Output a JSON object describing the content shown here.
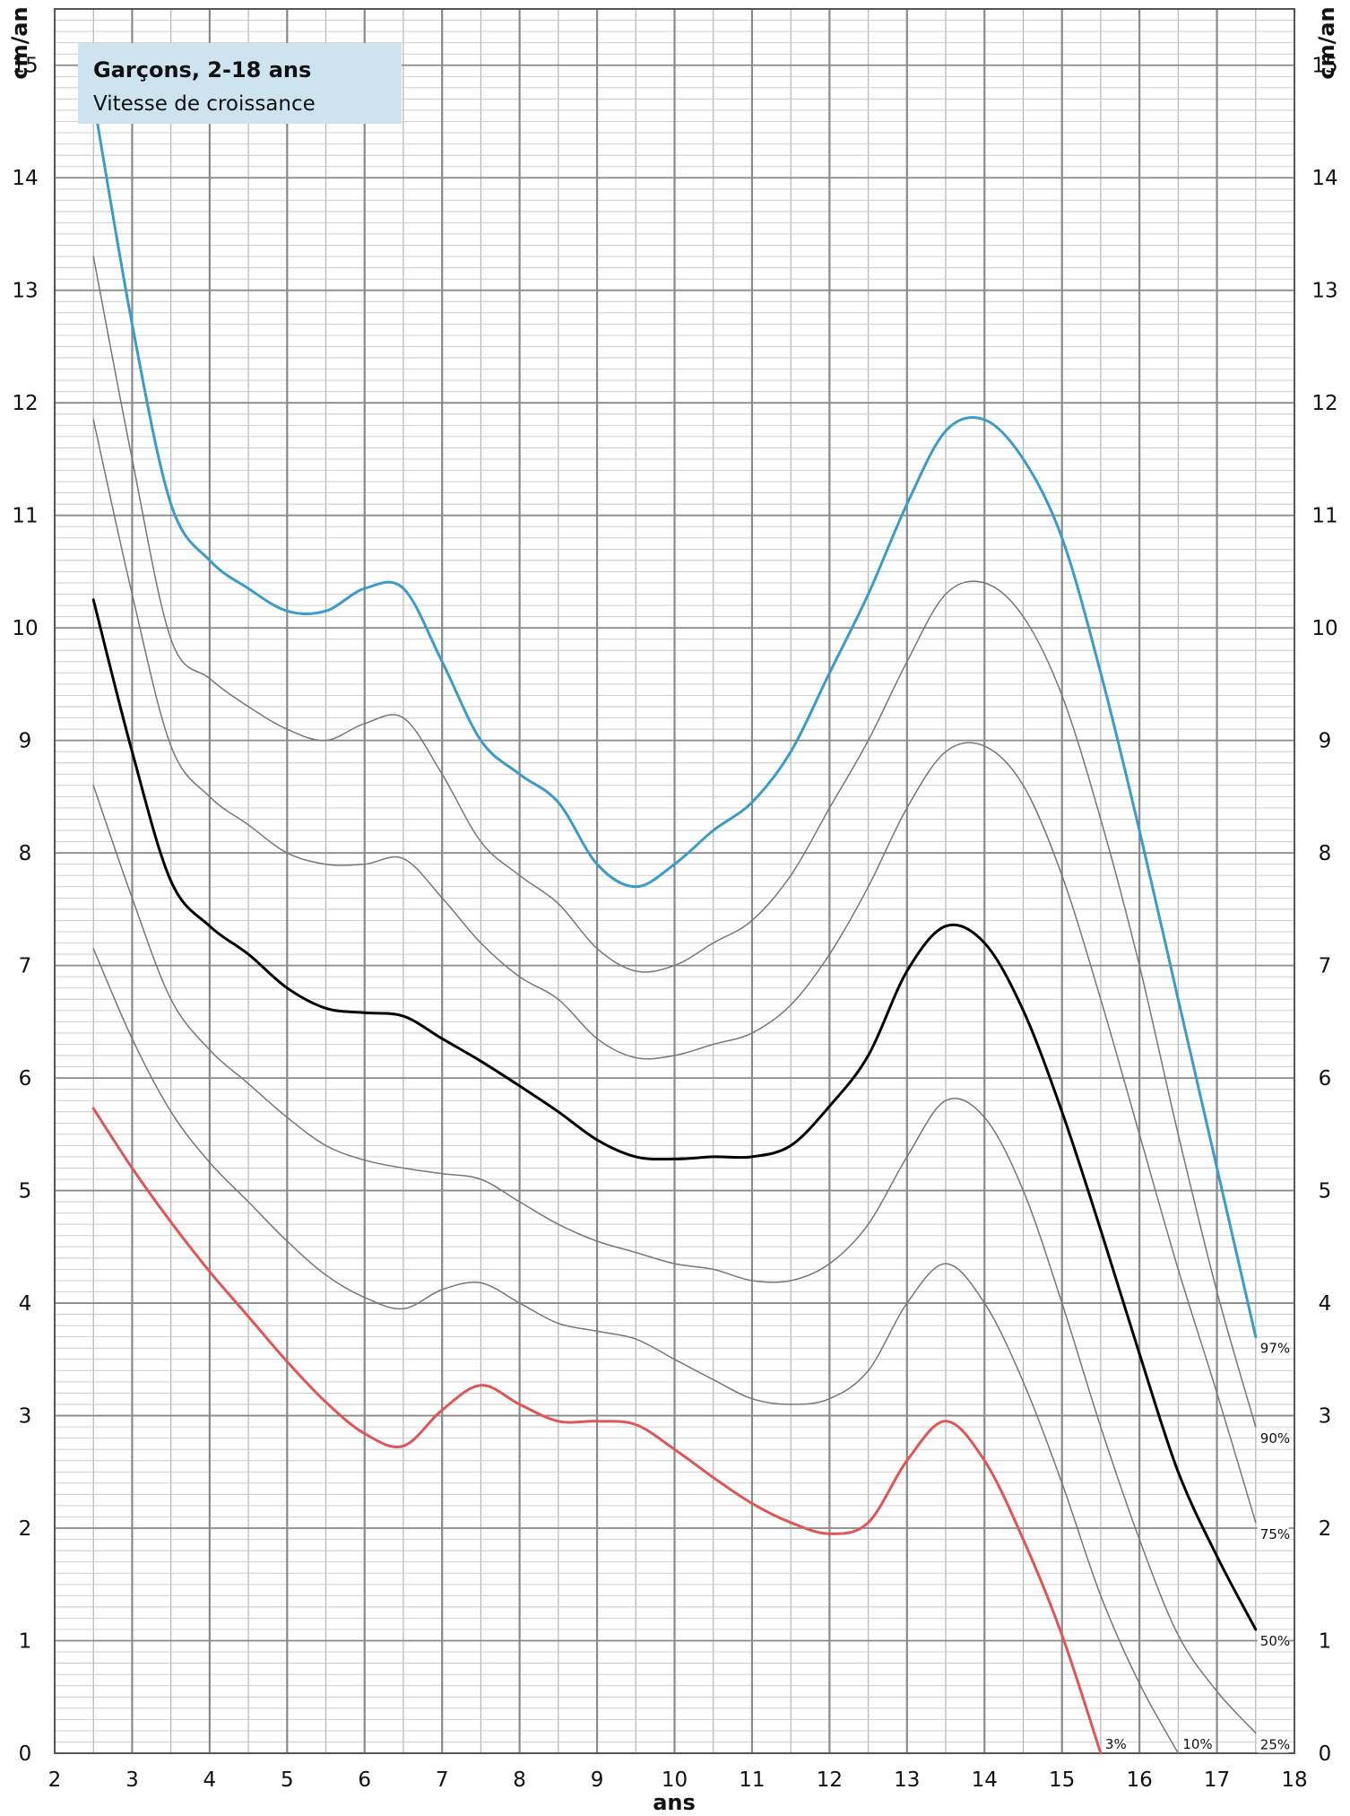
{
  "chart_data": {
    "type": "line",
    "title": "Garçons, 2-18 ans",
    "subtitle": "Vitesse de croissance",
    "xlabel": "ans",
    "ylabel_left": "cm/an",
    "ylabel_right": "cm/an",
    "xlim": [
      2,
      18
    ],
    "ylim": [
      0,
      15.5
    ],
    "x_ticks": [
      "2",
      "3",
      "4",
      "5",
      "6",
      "7",
      "8",
      "9",
      "10",
      "11",
      "12",
      "13",
      "14",
      "15",
      "16",
      "17",
      "18"
    ],
    "y_ticks": [
      "0",
      "1",
      "2",
      "3",
      "4",
      "5",
      "6",
      "7",
      "8",
      "9",
      "10",
      "11",
      "12",
      "13",
      "14",
      "15"
    ],
    "grid": true,
    "colors": {
      "p97": "#3a9cc7",
      "p50": "#000000",
      "p3": "#e05555",
      "other": "#777777",
      "title_bg": "#cde4ee"
    },
    "series": [
      {
        "name": "97%",
        "color": "#3a9cc7",
        "width": 3,
        "x": [
          2.5,
          3,
          3.5,
          4,
          4.5,
          5,
          5.5,
          6,
          6.5,
          7,
          7.5,
          8,
          8.5,
          9,
          9.5,
          10,
          10.5,
          11,
          11.5,
          12,
          12.5,
          13,
          13.5,
          14,
          14.5,
          15,
          15.5,
          16,
          16.5,
          17,
          17.5
        ],
        "y": [
          14.7,
          12.7,
          11.1,
          10.6,
          10.35,
          10.15,
          10.15,
          10.35,
          10.35,
          9.7,
          9.0,
          8.7,
          8.45,
          7.9,
          7.7,
          7.9,
          8.2,
          8.45,
          8.9,
          9.6,
          10.3,
          11.1,
          11.75,
          11.85,
          11.5,
          10.8,
          9.6,
          8.2,
          6.7,
          5.2,
          3.7
        ]
      },
      {
        "name": "90%",
        "color": "#777777",
        "width": 1.5,
        "x": [
          2.5,
          3,
          3.5,
          4,
          4.5,
          5,
          5.5,
          6,
          6.5,
          7,
          7.5,
          8,
          8.5,
          9,
          9.5,
          10,
          10.5,
          11,
          11.5,
          12,
          12.5,
          13,
          13.5,
          14,
          14.5,
          15,
          15.5,
          16,
          16.5,
          17,
          17.5
        ],
        "y": [
          13.3,
          11.5,
          9.9,
          9.55,
          9.3,
          9.1,
          9.0,
          9.15,
          9.2,
          8.7,
          8.1,
          7.8,
          7.55,
          7.15,
          6.95,
          7.0,
          7.2,
          7.4,
          7.8,
          8.4,
          9.0,
          9.7,
          10.3,
          10.4,
          10.1,
          9.4,
          8.3,
          7.0,
          5.5,
          4.1,
          2.9
        ]
      },
      {
        "name": "75%",
        "color": "#777777",
        "width": 1.5,
        "x": [
          2.5,
          3,
          3.5,
          4,
          4.5,
          5,
          5.5,
          6,
          6.5,
          7,
          7.5,
          8,
          8.5,
          9,
          9.5,
          10,
          10.5,
          11,
          11.5,
          12,
          12.5,
          13,
          13.5,
          14,
          14.5,
          15,
          15.5,
          16,
          16.5,
          17,
          17.5
        ],
        "y": [
          11.85,
          10.3,
          8.95,
          8.5,
          8.25,
          8.0,
          7.9,
          7.9,
          7.95,
          7.6,
          7.2,
          6.9,
          6.7,
          6.35,
          6.18,
          6.2,
          6.3,
          6.4,
          6.65,
          7.1,
          7.7,
          8.4,
          8.9,
          8.95,
          8.6,
          7.8,
          6.7,
          5.5,
          4.3,
          3.2,
          2.05
        ]
      },
      {
        "name": "50%",
        "color": "#000000",
        "width": 3,
        "x": [
          2.5,
          3,
          3.5,
          4,
          4.5,
          5,
          5.5,
          6,
          6.5,
          7,
          7.5,
          8,
          8.5,
          9,
          9.5,
          10,
          10.5,
          11,
          11.5,
          12,
          12.5,
          13,
          13.5,
          14,
          14.5,
          15,
          15.5,
          16,
          16.5,
          17,
          17.5
        ],
        "y": [
          10.25,
          8.9,
          7.75,
          7.35,
          7.1,
          6.8,
          6.62,
          6.58,
          6.55,
          6.35,
          6.15,
          5.93,
          5.7,
          5.45,
          5.3,
          5.28,
          5.3,
          5.3,
          5.4,
          5.75,
          6.2,
          6.95,
          7.35,
          7.2,
          6.6,
          5.7,
          4.65,
          3.55,
          2.5,
          1.75,
          1.1
        ]
      },
      {
        "name": "25%",
        "color": "#777777",
        "width": 1.5,
        "x": [
          2.5,
          3,
          3.5,
          4,
          4.5,
          5,
          5.5,
          6,
          6.5,
          7,
          7.5,
          8,
          8.5,
          9,
          9.5,
          10,
          10.5,
          11,
          11.5,
          12,
          12.5,
          13,
          13.5,
          14,
          14.5,
          15,
          15.5,
          16,
          16.5,
          17,
          17.5
        ],
        "y": [
          8.6,
          7.6,
          6.7,
          6.25,
          5.95,
          5.65,
          5.4,
          5.27,
          5.2,
          5.15,
          5.1,
          4.9,
          4.7,
          4.55,
          4.45,
          4.35,
          4.3,
          4.2,
          4.2,
          4.35,
          4.7,
          5.3,
          5.8,
          5.65,
          5.0,
          4.0,
          2.9,
          1.9,
          1.05,
          0.55,
          0.18
        ]
      },
      {
        "name": "10%",
        "color": "#777777",
        "width": 1.5,
        "x": [
          2.5,
          3,
          3.5,
          4,
          4.5,
          5,
          5.5,
          6,
          6.5,
          7,
          7.5,
          8,
          8.5,
          9,
          9.5,
          10,
          10.5,
          11,
          11.5,
          12,
          12.5,
          13,
          13.5,
          14,
          14.5,
          15,
          15.5,
          16,
          16.5
        ],
        "y": [
          7.15,
          6.35,
          5.7,
          5.25,
          4.9,
          4.55,
          4.25,
          4.05,
          3.95,
          4.12,
          4.18,
          4.0,
          3.82,
          3.75,
          3.68,
          3.5,
          3.32,
          3.15,
          3.1,
          3.15,
          3.4,
          4.0,
          4.35,
          4.0,
          3.3,
          2.4,
          1.4,
          0.62,
          0.0
        ]
      },
      {
        "name": "3%",
        "color": "#e05555",
        "width": 3,
        "x": [
          2.5,
          3,
          3.5,
          4,
          4.5,
          5,
          5.5,
          6,
          6.5,
          7,
          7.5,
          8,
          8.5,
          9,
          9.5,
          10,
          10.5,
          11,
          11.5,
          12,
          12.5,
          13,
          13.5,
          14,
          14.5,
          15,
          15.5
        ],
        "y": [
          5.73,
          5.2,
          4.72,
          4.28,
          3.88,
          3.48,
          3.12,
          2.84,
          2.73,
          3.05,
          3.27,
          3.1,
          2.95,
          2.95,
          2.92,
          2.7,
          2.45,
          2.22,
          2.05,
          1.95,
          2.05,
          2.6,
          2.95,
          2.6,
          1.9,
          1.05,
          0.0
        ]
      }
    ]
  }
}
